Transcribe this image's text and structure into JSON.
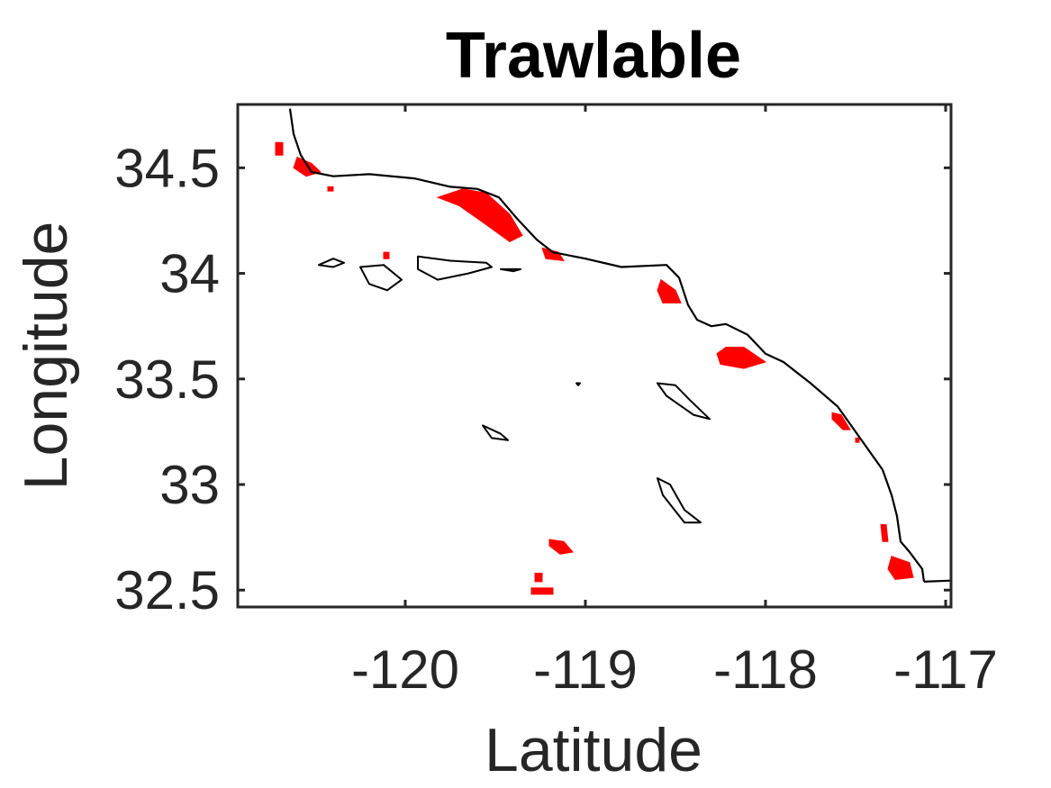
{
  "chart_data": {
    "type": "map",
    "title": "Trawlable",
    "xlabel": "Latitude",
    "ylabel": "Longitude",
    "xlim": [
      -120.93,
      -116.97
    ],
    "ylim": [
      32.42,
      34.8
    ],
    "x_ticks": [
      -120,
      -119,
      -118,
      -117
    ],
    "x_tick_labels": [
      "-120",
      "-119",
      "-118",
      "-117"
    ],
    "y_ticks": [
      32.5,
      33,
      33.5,
      34,
      34.5
    ],
    "y_tick_labels": [
      "32.5",
      "33",
      "33.5",
      "34",
      "34.5"
    ],
    "grid": false,
    "colors": {
      "trawlable": "#ff0000",
      "coastline": "#000000",
      "axes": "#262626"
    },
    "coastline": [
      [
        -120.64,
        34.78
      ],
      [
        -120.62,
        34.66
      ],
      [
        -120.58,
        34.56
      ],
      [
        -120.52,
        34.48
      ],
      [
        -120.4,
        34.46
      ],
      [
        -120.2,
        34.47
      ],
      [
        -119.95,
        34.45
      ],
      [
        -119.75,
        34.41
      ],
      [
        -119.6,
        34.4
      ],
      [
        -119.48,
        34.36
      ],
      [
        -119.38,
        34.26
      ],
      [
        -119.27,
        34.16
      ],
      [
        -119.18,
        34.1
      ],
      [
        -119.0,
        34.07
      ],
      [
        -118.8,
        34.03
      ],
      [
        -118.55,
        34.04
      ],
      [
        -118.48,
        33.98
      ],
      [
        -118.43,
        33.85
      ],
      [
        -118.38,
        33.78
      ],
      [
        -118.3,
        33.75
      ],
      [
        -118.22,
        33.76
      ],
      [
        -118.1,
        33.71
      ],
      [
        -118.0,
        33.62
      ],
      [
        -117.9,
        33.58
      ],
      [
        -117.75,
        33.48
      ],
      [
        -117.6,
        33.37
      ],
      [
        -117.45,
        33.19
      ],
      [
        -117.35,
        33.07
      ],
      [
        -117.3,
        32.95
      ],
      [
        -117.27,
        32.85
      ],
      [
        -117.25,
        32.73
      ],
      [
        -117.2,
        32.68
      ],
      [
        -117.13,
        32.6
      ],
      [
        -117.12,
        32.54
      ]
    ],
    "islands": [
      [
        [
          -120.48,
          34.04
        ],
        [
          -120.4,
          34.07
        ],
        [
          -120.34,
          34.05
        ],
        [
          -120.4,
          34.03
        ],
        [
          -120.48,
          34.04
        ]
      ],
      [
        [
          -120.25,
          34.03
        ],
        [
          -120.12,
          34.04
        ],
        [
          -120.02,
          33.97
        ],
        [
          -120.1,
          33.92
        ],
        [
          -120.2,
          33.95
        ],
        [
          -120.25,
          34.03
        ]
      ],
      [
        [
          -119.93,
          34.08
        ],
        [
          -119.75,
          34.06
        ],
        [
          -119.55,
          34.05
        ],
        [
          -119.52,
          34.03
        ],
        [
          -119.65,
          34.0
        ],
        [
          -119.82,
          33.97
        ],
        [
          -119.93,
          34.02
        ],
        [
          -119.93,
          34.08
        ]
      ],
      [
        [
          -119.47,
          34.02
        ],
        [
          -119.36,
          34.02
        ],
        [
          -119.4,
          34.01
        ],
        [
          -119.47,
          34.02
        ]
      ],
      [
        [
          -119.05,
          33.48
        ],
        [
          -119.03,
          33.48
        ],
        [
          -119.04,
          33.47
        ],
        [
          -119.05,
          33.48
        ]
      ],
      [
        [
          -119.57,
          33.28
        ],
        [
          -119.47,
          33.24
        ],
        [
          -119.43,
          33.21
        ],
        [
          -119.52,
          33.22
        ],
        [
          -119.57,
          33.28
        ]
      ],
      [
        [
          -118.6,
          33.48
        ],
        [
          -118.5,
          33.47
        ],
        [
          -118.42,
          33.4
        ],
        [
          -118.31,
          33.31
        ],
        [
          -118.4,
          33.33
        ],
        [
          -118.55,
          33.42
        ],
        [
          -118.6,
          33.48
        ]
      ],
      [
        [
          -118.6,
          33.03
        ],
        [
          -118.53,
          33.0
        ],
        [
          -118.45,
          32.88
        ],
        [
          -118.36,
          32.82
        ],
        [
          -118.45,
          32.82
        ],
        [
          -118.57,
          32.95
        ],
        [
          -118.6,
          33.03
        ]
      ]
    ],
    "trawlable_areas": [
      [
        [
          -120.72,
          34.62
        ],
        [
          -120.68,
          34.62
        ],
        [
          -120.68,
          34.56
        ],
        [
          -120.72,
          34.56
        ]
      ],
      [
        [
          -120.6,
          34.55
        ],
        [
          -120.52,
          34.52
        ],
        [
          -120.47,
          34.48
        ],
        [
          -120.55,
          34.46
        ],
        [
          -120.62,
          34.5
        ]
      ],
      [
        [
          -120.43,
          34.41
        ],
        [
          -120.4,
          34.41
        ],
        [
          -120.4,
          34.39
        ],
        [
          -120.43,
          34.39
        ]
      ],
      [
        [
          -119.68,
          34.4
        ],
        [
          -119.55,
          34.38
        ],
        [
          -119.42,
          34.28
        ],
        [
          -119.35,
          34.18
        ],
        [
          -119.42,
          34.15
        ],
        [
          -119.55,
          34.23
        ],
        [
          -119.7,
          34.32
        ],
        [
          -119.82,
          34.36
        ]
      ],
      [
        [
          -119.24,
          34.12
        ],
        [
          -119.15,
          34.1
        ],
        [
          -119.12,
          34.06
        ],
        [
          -119.22,
          34.07
        ]
      ],
      [
        [
          -120.12,
          34.1
        ],
        [
          -120.09,
          34.1
        ],
        [
          -120.09,
          34.07
        ],
        [
          -120.12,
          34.07
        ]
      ],
      [
        [
          -118.58,
          33.97
        ],
        [
          -118.5,
          33.92
        ],
        [
          -118.47,
          33.86
        ],
        [
          -118.57,
          33.86
        ],
        [
          -118.6,
          33.92
        ]
      ],
      [
        [
          -118.22,
          33.65
        ],
        [
          -118.12,
          33.65
        ],
        [
          -118.0,
          33.58
        ],
        [
          -118.12,
          33.55
        ],
        [
          -118.25,
          33.57
        ],
        [
          -118.27,
          33.62
        ]
      ],
      [
        [
          -117.63,
          33.34
        ],
        [
          -117.58,
          33.33
        ],
        [
          -117.53,
          33.26
        ],
        [
          -117.57,
          33.26
        ],
        [
          -117.63,
          33.31
        ]
      ],
      [
        [
          -117.5,
          33.22
        ],
        [
          -117.48,
          33.22
        ],
        [
          -117.48,
          33.2
        ],
        [
          -117.5,
          33.2
        ]
      ],
      [
        [
          -117.36,
          32.81
        ],
        [
          -117.33,
          32.81
        ],
        [
          -117.32,
          32.73
        ],
        [
          -117.35,
          32.73
        ]
      ],
      [
        [
          -117.3,
          32.66
        ],
        [
          -117.2,
          32.63
        ],
        [
          -117.18,
          32.56
        ],
        [
          -117.28,
          32.55
        ],
        [
          -117.32,
          32.6
        ]
      ],
      [
        [
          -119.2,
          32.74
        ],
        [
          -119.12,
          32.73
        ],
        [
          -119.07,
          32.68
        ],
        [
          -119.14,
          32.67
        ],
        [
          -119.2,
          32.71
        ]
      ],
      [
        [
          -119.28,
          32.58
        ],
        [
          -119.24,
          32.58
        ],
        [
          -119.24,
          32.54
        ],
        [
          -119.28,
          32.54
        ]
      ],
      [
        [
          -119.3,
          32.51
        ],
        [
          -119.18,
          32.51
        ],
        [
          -119.18,
          32.48
        ],
        [
          -119.3,
          32.48
        ]
      ]
    ]
  }
}
